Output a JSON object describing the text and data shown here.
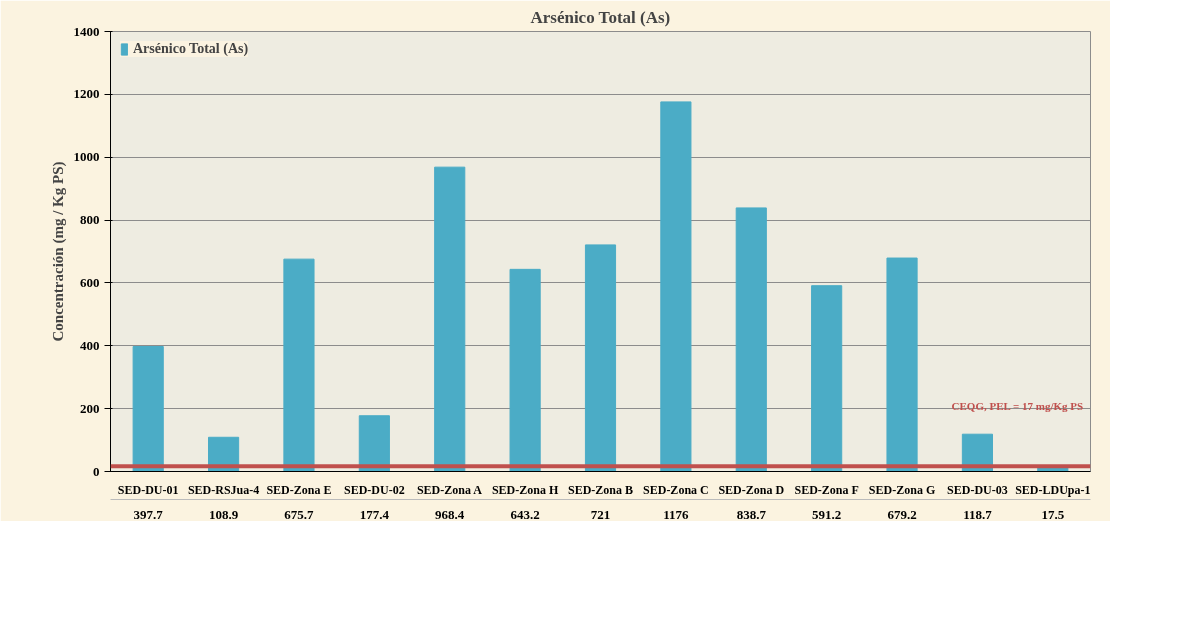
{
  "chart_data": {
    "type": "bar",
    "title": "Arsénico Total (As)",
    "ylabel": "Concentración (mg / Kg PS)",
    "categories": [
      "SED-DU-01",
      "SED-RSJua-4",
      "SED-Zona E",
      "SED-DU-02",
      "SED-Zona A",
      "SED-Zona H",
      "SED-Zona B",
      "SED-Zona C",
      "SED-Zona D",
      "SED-Zona F",
      "SED-Zona G",
      "SED-DU-03",
      "SED-LDUpa-1"
    ],
    "series": [
      {
        "name": "Arsénico Total (As)",
        "color": "#4bacc6",
        "values": [
          397.7,
          108.9,
          675.7,
          177.4,
          968.4,
          643.2,
          721,
          1176,
          838.7,
          591.2,
          679.2,
          118.7,
          17.5
        ]
      }
    ],
    "ylim": [
      0,
      1400
    ],
    "yticks": [
      0,
      200,
      400,
      600,
      800,
      1000,
      1200,
      1400
    ],
    "grid": "y",
    "legend": "top left",
    "data_labels": true,
    "ref_lines": [
      {
        "axis": "y",
        "value": 17,
        "label": "CEQG, PEL =  17 mg/Kg PS",
        "color": "#c0504d"
      }
    ]
  }
}
